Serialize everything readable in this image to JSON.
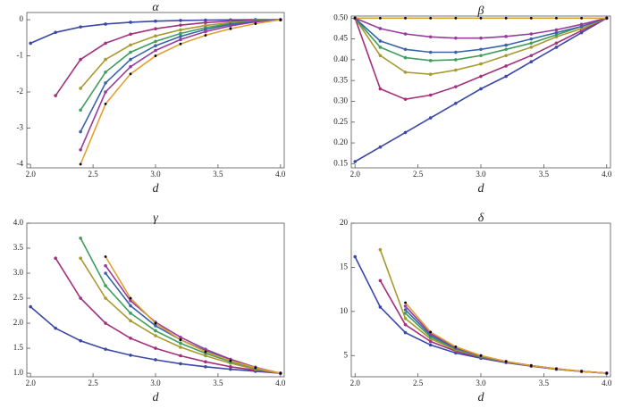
{
  "chart_data": [
    {
      "type": "line",
      "title": "α",
      "x_label": "d",
      "x": [
        2.0,
        2.2,
        2.4,
        2.6,
        2.8,
        3.0,
        3.2,
        3.4,
        3.6,
        3.8,
        4.0
      ],
      "xlim": [
        1.97,
        4.03
      ],
      "xticks": [
        {
          "value": 2,
          "label": "2.0"
        },
        2.5,
        {
          "value": 3,
          "label": "3.0"
        },
        3.5,
        {
          "value": 4,
          "label": "4.0"
        }
      ],
      "ylim": [
        -4.1,
        0.2
      ],
      "yticks": [
        -4,
        -3,
        -2,
        -1,
        0
      ],
      "series": [
        {
          "color": "#3b48a8",
          "values": [
            -0.65,
            -0.35,
            -0.2,
            -0.12,
            -0.07,
            -0.04,
            -0.02,
            -0.01,
            -0.005,
            0,
            0
          ]
        },
        {
          "color": "#a3307e",
          "values": [
            null,
            -2.1,
            -1.1,
            -0.65,
            -0.4,
            -0.25,
            -0.15,
            -0.08,
            -0.04,
            -0.01,
            0
          ]
        },
        {
          "color": "#a89a30",
          "values": [
            null,
            null,
            -1.9,
            -1.1,
            -0.7,
            -0.45,
            -0.28,
            -0.16,
            -0.08,
            -0.03,
            0
          ]
        },
        {
          "color": "#3f9e5e",
          "values": [
            null,
            null,
            -2.5,
            -1.45,
            -0.9,
            -0.6,
            -0.38,
            -0.22,
            -0.11,
            -0.04,
            0
          ]
        },
        {
          "color": "#3a64a8",
          "values": [
            null,
            null,
            -3.1,
            -1.75,
            -1.1,
            -0.72,
            -0.46,
            -0.27,
            -0.13,
            -0.05,
            0
          ]
        },
        {
          "color": "#963c9e",
          "values": [
            null,
            null,
            -3.6,
            -2.0,
            -1.3,
            -0.85,
            -0.55,
            -0.33,
            -0.17,
            -0.06,
            0
          ]
        },
        {
          "color": "#000000",
          "values": [
            null,
            null,
            -4.0,
            -2.33,
            -1.5,
            -1.0,
            -0.67,
            -0.43,
            -0.25,
            -0.11,
            0
          ]
        }
      ]
    },
    {
      "type": "line",
      "title": "β",
      "x_label": "d",
      "x": [
        2.0,
        2.2,
        2.4,
        2.6,
        2.8,
        3.0,
        3.2,
        3.4,
        3.6,
        3.8,
        4.0
      ],
      "xlim": [
        1.97,
        4.03
      ],
      "xticks": [
        {
          "value": 2,
          "label": "2.0"
        },
        2.5,
        {
          "value": 3,
          "label": "3.0"
        },
        3.5,
        {
          "value": 4,
          "label": "4.0"
        }
      ],
      "ylim": [
        0.14,
        0.505
      ],
      "yticks": [
        0.15,
        {
          "value": 0.2,
          "label": "0.20"
        },
        0.25,
        {
          "value": 0.3,
          "label": "0.30"
        },
        0.35,
        {
          "value": 0.4,
          "label": "0.40"
        },
        0.45,
        {
          "value": 0.5,
          "label": "0.50"
        }
      ],
      "series": [
        {
          "color": "#3b48a8",
          "values": [
            0.155,
            0.19,
            0.225,
            0.26,
            0.295,
            0.33,
            0.36,
            0.395,
            0.43,
            0.465,
            0.5
          ]
        },
        {
          "color": "#a3307e",
          "values": [
            0.5,
            0.33,
            0.305,
            0.315,
            0.335,
            0.36,
            0.385,
            0.41,
            0.44,
            0.47,
            0.5
          ]
        },
        {
          "color": "#a89a30",
          "values": [
            0.5,
            0.41,
            0.37,
            0.365,
            0.375,
            0.39,
            0.41,
            0.43,
            0.455,
            0.475,
            0.5
          ]
        },
        {
          "color": "#3f9e5e",
          "values": [
            0.5,
            0.43,
            0.405,
            0.398,
            0.4,
            0.41,
            0.425,
            0.44,
            0.46,
            0.48,
            0.5
          ]
        },
        {
          "color": "#3a64a8",
          "values": [
            0.5,
            0.445,
            0.425,
            0.418,
            0.418,
            0.425,
            0.435,
            0.45,
            0.465,
            0.48,
            0.5
          ]
        },
        {
          "color": "#963c9e",
          "values": [
            0.5,
            0.475,
            0.462,
            0.455,
            0.452,
            0.452,
            0.456,
            0.462,
            0.472,
            0.485,
            0.5
          ]
        },
        {
          "color": "#000000",
          "values": [
            0.5,
            0.5,
            0.5,
            0.5,
            0.5,
            0.5,
            0.5,
            0.5,
            0.5,
            0.5,
            0.5
          ]
        }
      ]
    },
    {
      "type": "line",
      "title": "γ",
      "x_label": "d",
      "x": [
        2.0,
        2.2,
        2.4,
        2.6,
        2.8,
        3.0,
        3.2,
        3.4,
        3.6,
        3.8,
        4.0
      ],
      "xlim": [
        1.97,
        4.03
      ],
      "xticks": [
        {
          "value": 2,
          "label": "2.0"
        },
        2.5,
        {
          "value": 3,
          "label": "3.0"
        },
        3.5,
        {
          "value": 4,
          "label": "4.0"
        }
      ],
      "ylim": [
        0.93,
        4.0
      ],
      "yticks": [
        {
          "value": 1,
          "label": "1.0"
        },
        1.5,
        {
          "value": 2,
          "label": "2.0"
        },
        2.5,
        {
          "value": 3,
          "label": "3.0"
        },
        3.5,
        {
          "value": 4,
          "label": "4.0"
        }
      ],
      "series": [
        {
          "color": "#3b48a8",
          "values": [
            2.33,
            1.9,
            1.65,
            1.48,
            1.36,
            1.27,
            1.19,
            1.13,
            1.08,
            1.04,
            1
          ]
        },
        {
          "color": "#a3307e",
          "values": [
            null,
            3.3,
            2.5,
            2.0,
            1.7,
            1.5,
            1.35,
            1.23,
            1.13,
            1.06,
            1
          ]
        },
        {
          "color": "#a89a30",
          "values": [
            null,
            null,
            3.3,
            2.5,
            2.05,
            1.75,
            1.52,
            1.35,
            1.2,
            1.08,
            1
          ]
        },
        {
          "color": "#3f9e5e",
          "values": [
            null,
            null,
            3.7,
            2.75,
            2.2,
            1.85,
            1.6,
            1.4,
            1.23,
            1.1,
            1
          ]
        },
        {
          "color": "#3a64a8",
          "values": [
            null,
            null,
            null,
            3.0,
            2.35,
            1.95,
            1.67,
            1.45,
            1.26,
            1.11,
            1
          ]
        },
        {
          "color": "#963c9e",
          "values": [
            null,
            null,
            null,
            3.15,
            2.45,
            2.02,
            1.72,
            1.48,
            1.28,
            1.12,
            1
          ]
        },
        {
          "color": "#000000",
          "values": [
            null,
            null,
            null,
            3.33,
            2.5,
            2.0,
            1.67,
            1.43,
            1.25,
            1.11,
            1
          ]
        }
      ]
    },
    {
      "type": "line",
      "title": "δ",
      "x_label": "d",
      "x": [
        2.0,
        2.2,
        2.4,
        2.6,
        2.8,
        3.0,
        3.2,
        3.4,
        3.6,
        3.8,
        4.0
      ],
      "xlim": [
        1.97,
        4.03
      ],
      "xticks": [
        {
          "value": 2,
          "label": "2.0"
        },
        2.5,
        {
          "value": 3,
          "label": "3.0"
        },
        3.5,
        {
          "value": 4,
          "label": "4.0"
        }
      ],
      "ylim": [
        2.6,
        20
      ],
      "yticks": [
        5,
        10,
        15,
        20
      ],
      "series": [
        {
          "color": "#3b48a8",
          "values": [
            16.2,
            10.5,
            7.6,
            6.2,
            5.3,
            4.7,
            4.2,
            3.8,
            3.45,
            3.2,
            3
          ]
        },
        {
          "color": "#a3307e",
          "values": [
            null,
            13.5,
            8.5,
            6.6,
            5.5,
            4.8,
            4.25,
            3.82,
            3.47,
            3.2,
            3
          ]
        },
        {
          "color": "#a89a30",
          "values": [
            null,
            17,
            9.2,
            6.9,
            5.65,
            4.87,
            4.28,
            3.84,
            3.48,
            3.21,
            3
          ]
        },
        {
          "color": "#3f9e5e",
          "values": [
            null,
            null,
            9.8,
            7.1,
            5.75,
            4.92,
            4.3,
            3.85,
            3.49,
            3.21,
            3
          ]
        },
        {
          "color": "#3a64a8",
          "values": [
            null,
            null,
            10.2,
            7.3,
            5.85,
            4.95,
            4.31,
            3.85,
            3.49,
            3.21,
            3
          ]
        },
        {
          "color": "#963c9e",
          "values": [
            null,
            null,
            10.6,
            7.5,
            5.92,
            4.98,
            4.32,
            3.86,
            3.5,
            3.22,
            3
          ]
        },
        {
          "color": "#000000",
          "values": [
            null,
            null,
            11,
            7.67,
            6.0,
            5.0,
            4.33,
            3.86,
            3.5,
            3.22,
            3
          ]
        }
      ]
    }
  ]
}
